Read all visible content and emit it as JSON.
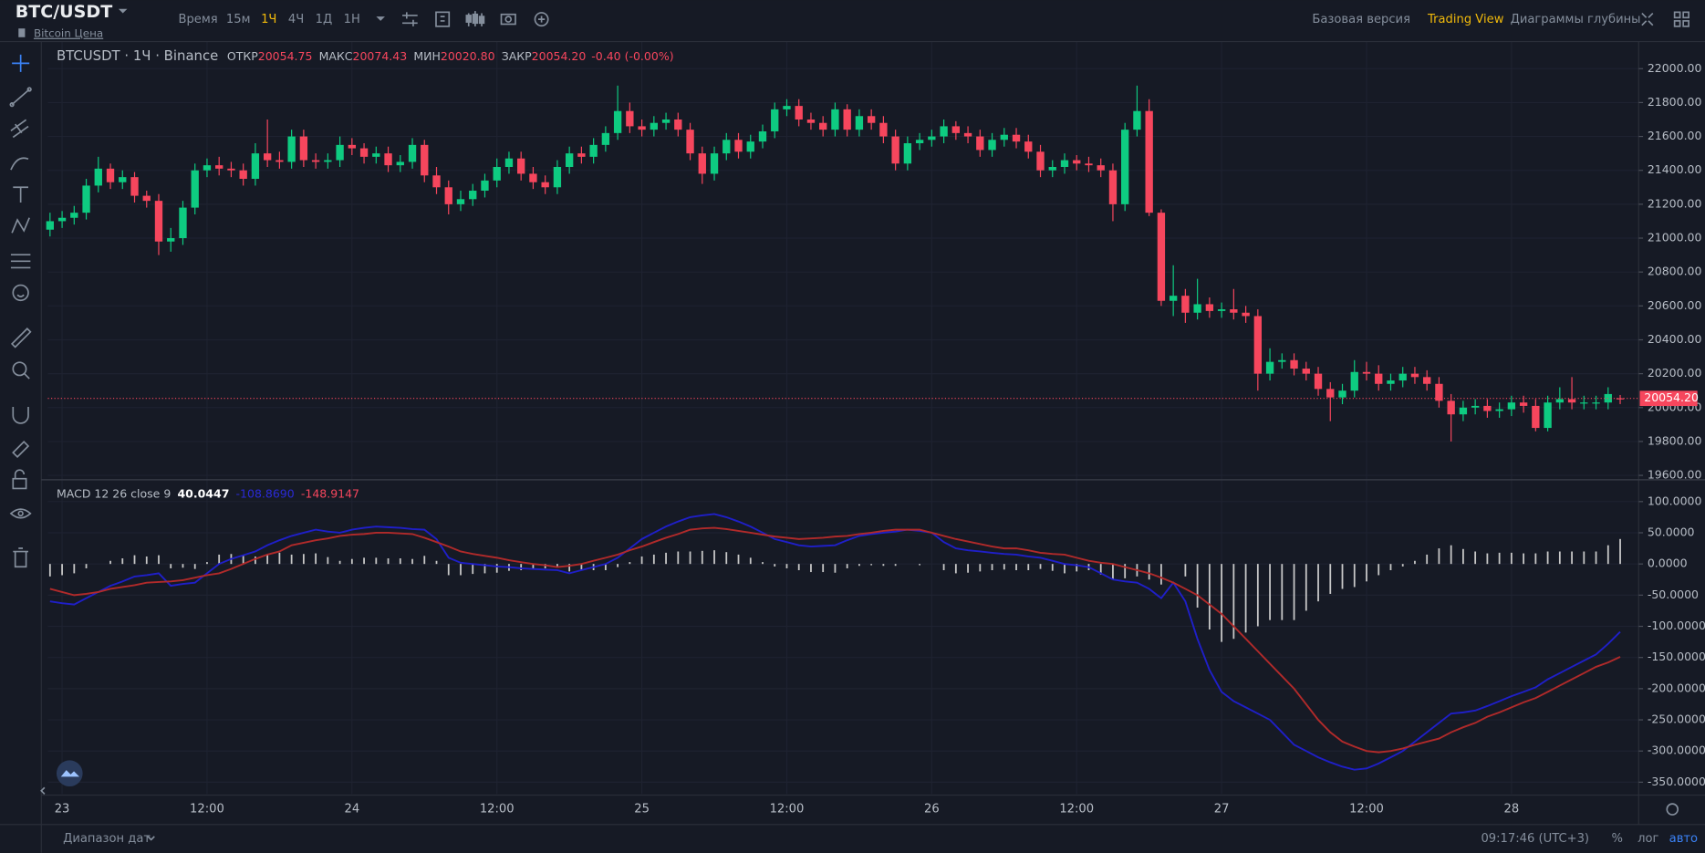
{
  "header": {
    "pair": "BTC/USDT",
    "pair_link": "Bitcoin Цена",
    "intervals": [
      "Время",
      "15м",
      "1Ч",
      "4Ч",
      "1Д",
      "1Н"
    ],
    "views": [
      "Базовая версия",
      "Trading View",
      "Диаграммы глубины"
    ]
  },
  "chart_data": [
    {
      "type": "candlestick",
      "legend": {
        "title": "BTCUSDT · 1Ч · Binance",
        "fields": [
          {
            "label": "ОТКР",
            "value": "20054.75"
          },
          {
            "label": "МАКС",
            "value": "20074.43"
          },
          {
            "label": "МИН",
            "value": "20020.80"
          },
          {
            "label": "ЗАКР",
            "value": "20054.20"
          }
        ],
        "change": "-0.40 (-0.00%)"
      },
      "up_color": "#0ecb81",
      "down_color": "#f6465d",
      "open": [
        21050,
        21100,
        21120,
        21150,
        21310,
        21410,
        21330,
        21360,
        21250,
        21220,
        20980,
        21000,
        21180,
        21400,
        21430,
        21410,
        21400,
        21350,
        21500,
        21460,
        21450,
        21600,
        21460,
        21450,
        21460,
        21550,
        21530,
        21480,
        21500,
        21430,
        21450,
        21550,
        21370,
        21300,
        21200,
        21230,
        21280,
        21340,
        21420,
        21470,
        21380,
        21330,
        21300,
        21420,
        21500,
        21480,
        21550,
        21620,
        21750,
        21660,
        21640,
        21680,
        21700,
        21640,
        21500,
        21380,
        21500,
        21580,
        21510,
        21570,
        21630,
        21760,
        21780,
        21700,
        21680,
        21640,
        21760,
        21640,
        21720,
        21680,
        21600,
        21440,
        21560,
        21580,
        21600,
        21660,
        21620,
        21600,
        21520,
        21580,
        21610,
        21570,
        21510,
        21400,
        21420,
        21460,
        21440,
        21430,
        21400,
        21200,
        21640,
        21750,
        21150,
        20630,
        20660,
        20560,
        20610,
        20570,
        20580,
        20560,
        20540,
        20200,
        20270,
        20280,
        20230,
        20200,
        20110,
        20060,
        20100,
        20210,
        20200,
        20140,
        20160,
        20200,
        20180,
        20140,
        20040,
        19960,
        20000,
        20010,
        19980,
        19990,
        20030,
        20010,
        19880,
        20030,
        20050,
        20030,
        20030,
        20030,
        20054.75
      ],
      "high": [
        21150,
        21160,
        21190,
        21350,
        21480,
        21440,
        21400,
        21390,
        21280,
        21260,
        21060,
        21220,
        21440,
        21470,
        21480,
        21450,
        21440,
        21560,
        21700,
        21510,
        21640,
        21640,
        21500,
        21500,
        21600,
        21590,
        21560,
        21540,
        21540,
        21490,
        21590,
        21580,
        21420,
        21340,
        21280,
        21320,
        21380,
        21470,
        21510,
        21510,
        21420,
        21370,
        21460,
        21540,
        21540,
        21590,
        21660,
        21900,
        21800,
        21700,
        21720,
        21740,
        21740,
        21680,
        21540,
        21540,
        21620,
        21620,
        21610,
        21670,
        21800,
        21820,
        21820,
        21740,
        21720,
        21800,
        21790,
        21760,
        21760,
        21720,
        21640,
        21600,
        21620,
        21640,
        21700,
        21690,
        21660,
        21640,
        21620,
        21650,
        21650,
        21610,
        21550,
        21460,
        21500,
        21490,
        21480,
        21470,
        21440,
        21680,
        21900,
        21820,
        21170,
        20840,
        20700,
        20760,
        20650,
        20620,
        20700,
        20600,
        20580,
        20350,
        20320,
        20320,
        20270,
        20240,
        20150,
        20140,
        20280,
        20270,
        20250,
        20200,
        20240,
        20240,
        20220,
        20180,
        20080,
        20040,
        20050,
        20050,
        20030,
        20070,
        20070,
        20050,
        20070,
        20120,
        20180,
        20070,
        20070,
        20120,
        20074.43
      ],
      "low": [
        21010,
        21060,
        21080,
        21110,
        21270,
        21290,
        21290,
        21210,
        21180,
        20900,
        20920,
        20960,
        21140,
        21360,
        21370,
        21360,
        21310,
        21310,
        21420,
        21410,
        21410,
        21420,
        21410,
        21410,
        21420,
        21490,
        21440,
        21440,
        21390,
        21390,
        21410,
        21330,
        21260,
        21140,
        21160,
        21190,
        21240,
        21300,
        21380,
        21340,
        21290,
        21260,
        21260,
        21380,
        21440,
        21440,
        21510,
        21580,
        21620,
        21600,
        21600,
        21640,
        21600,
        21460,
        21320,
        21340,
        21460,
        21470,
        21470,
        21530,
        21590,
        21720,
        21660,
        21640,
        21600,
        21600,
        21600,
        21600,
        21640,
        21560,
        21400,
        21400,
        21520,
        21540,
        21560,
        21580,
        21560,
        21480,
        21480,
        21540,
        21530,
        21470,
        21360,
        21360,
        21380,
        21400,
        21390,
        21360,
        21100,
        21160,
        21600,
        21130,
        20600,
        20540,
        20500,
        20520,
        20530,
        20530,
        20520,
        20500,
        20100,
        20160,
        20230,
        20190,
        20160,
        20070,
        19920,
        20020,
        20060,
        20160,
        20100,
        20100,
        20120,
        20140,
        20100,
        20000,
        19800,
        19920,
        19960,
        19940,
        19940,
        19950,
        19970,
        19860,
        19860,
        19990,
        19990,
        19990,
        19990,
        19990,
        20020.8
      ],
      "close": [
        21100,
        21120,
        21150,
        21310,
        21410,
        21330,
        21360,
        21250,
        21220,
        20980,
        21000,
        21180,
        21400,
        21430,
        21410,
        21400,
        21350,
        21500,
        21460,
        21450,
        21600,
        21460,
        21450,
        21460,
        21550,
        21530,
        21480,
        21500,
        21430,
        21450,
        21550,
        21370,
        21300,
        21200,
        21230,
        21280,
        21340,
        21420,
        21470,
        21380,
        21330,
        21300,
        21420,
        21500,
        21480,
        21550,
        21620,
        21750,
        21660,
        21640,
        21680,
        21700,
        21640,
        21500,
        21380,
        21500,
        21580,
        21510,
        21570,
        21630,
        21760,
        21780,
        21700,
        21680,
        21640,
        21760,
        21640,
        21720,
        21680,
        21600,
        21440,
        21560,
        21580,
        21600,
        21660,
        21620,
        21600,
        21520,
        21580,
        21610,
        21570,
        21510,
        21400,
        21420,
        21460,
        21440,
        21430,
        21400,
        21200,
        21640,
        21750,
        21150,
        20630,
        20660,
        20560,
        20610,
        20570,
        20580,
        20560,
        20540,
        20200,
        20270,
        20280,
        20230,
        20200,
        20110,
        20060,
        20100,
        20210,
        20200,
        20140,
        20160,
        20200,
        20180,
        20140,
        20040,
        19960,
        20000,
        20010,
        19980,
        19990,
        20030,
        20010,
        19880,
        20030,
        20050,
        20030,
        20030,
        20030,
        20080,
        20054.2
      ],
      "last_price_label": "20054.20",
      "ylim": [
        19574,
        22160
      ],
      "yticks": [
        {
          "value": 19600,
          "label": "19600.00"
        },
        {
          "value": 19800,
          "label": "19800.00"
        },
        {
          "value": 20000,
          "label": "20000.00"
        },
        {
          "value": 20200,
          "label": "20200.00"
        },
        {
          "value": 20400,
          "label": "20400.00"
        },
        {
          "value": 20600,
          "label": "20600.00"
        },
        {
          "value": 20800,
          "label": "20800.00"
        },
        {
          "value": 21000,
          "label": "21000.00"
        },
        {
          "value": 21200,
          "label": "21200.00"
        },
        {
          "value": 21400,
          "label": "21400.00"
        },
        {
          "value": 21600,
          "label": "21600.00"
        },
        {
          "value": 21800,
          "label": "21800.00"
        },
        {
          "value": 22000,
          "label": "22000.00"
        }
      ],
      "xlim": [
        -0.18,
        131.53
      ],
      "xticks": [
        {
          "value": 1,
          "label": "23"
        },
        {
          "value": 13,
          "label": "12:00"
        },
        {
          "value": 25,
          "label": "24"
        },
        {
          "value": 37,
          "label": "12:00"
        },
        {
          "value": 49,
          "label": "25"
        },
        {
          "value": 61,
          "label": "12:00"
        },
        {
          "value": 73,
          "label": "26"
        },
        {
          "value": 85,
          "label": "12:00"
        },
        {
          "value": 97,
          "label": "27"
        },
        {
          "value": 109,
          "label": "12:00"
        },
        {
          "value": 121,
          "label": "28"
        }
      ],
      "grid": true
    },
    {
      "type": "combo",
      "legend": {
        "title": "MACD 12 26 close 9",
        "values": [
          "40.0447",
          "-108.8690",
          "-148.9147"
        ]
      },
      "series": [
        {
          "type": "bar",
          "color": "#c8c8c8",
          "legend_color": "#ffffff",
          "values": [
            -20,
            -18,
            -15,
            -7,
            0,
            5,
            9,
            14,
            12,
            14,
            -7,
            -6,
            -8,
            3,
            15,
            16,
            14,
            12,
            15,
            18,
            15,
            16,
            17,
            11,
            5,
            8,
            10,
            10,
            9,
            9,
            8,
            13,
            5,
            -18,
            -18,
            -16,
            -15,
            -14,
            -11,
            -10,
            -8,
            -7,
            -5,
            -12,
            -10,
            -10,
            -10,
            -5,
            3,
            12,
            15,
            18,
            20,
            20,
            21,
            22,
            19,
            15,
            10,
            3,
            -4,
            -7,
            -10,
            -13,
            -13,
            -14,
            -7,
            -3,
            -2,
            -3,
            -3,
            0,
            -2,
            0,
            -10,
            -15,
            -14,
            -12,
            -10,
            -9,
            -10,
            -10,
            -8,
            -11,
            -15,
            -12,
            -10,
            -17,
            -25,
            -23,
            -20,
            -25,
            -33,
            0,
            -20,
            -70,
            -105,
            -125,
            -120,
            -110,
            -100,
            -90,
            -90,
            -90,
            -75,
            -60,
            -48,
            -40,
            -37,
            -28,
            -18,
            -10,
            -4,
            5,
            15,
            25,
            30,
            24,
            20,
            17,
            18,
            18,
            17,
            17,
            20,
            20,
            20,
            20,
            20,
            30,
            40.0447
          ]
        },
        {
          "type": "line",
          "color": "#1f1fc8",
          "legend_color": "#2a2ad6",
          "values": [
            -60,
            -63,
            -65,
            -55,
            -45,
            -35,
            -28,
            -20,
            -18,
            -15,
            -35,
            -32,
            -30,
            -15,
            0,
            8,
            14,
            20,
            30,
            38,
            45,
            50,
            55,
            52,
            50,
            55,
            58,
            60,
            59,
            58,
            56,
            55,
            40,
            10,
            2,
            0,
            -2,
            -4,
            -5,
            -7,
            -8,
            -9,
            -10,
            -15,
            -10,
            -5,
            0,
            10,
            25,
            40,
            50,
            60,
            68,
            75,
            78,
            80,
            75,
            68,
            60,
            50,
            40,
            35,
            30,
            28,
            29,
            30,
            38,
            45,
            48,
            50,
            52,
            55,
            53,
            50,
            35,
            25,
            22,
            20,
            18,
            16,
            15,
            12,
            10,
            5,
            0,
            -2,
            -5,
            -15,
            -25,
            -28,
            -30,
            -40,
            -55,
            -30,
            -60,
            -120,
            -170,
            -205,
            -220,
            -230,
            -240,
            -250,
            -270,
            -290,
            -300,
            -310,
            -318,
            -325,
            -330,
            -328,
            -320,
            -310,
            -300,
            -285,
            -270,
            -255,
            -240,
            -238,
            -235,
            -228,
            -220,
            -212,
            -205,
            -198,
            -185,
            -175,
            -165,
            -155,
            -145,
            -128,
            -108.869
          ]
        },
        {
          "type": "line",
          "color": "#b02a2a",
          "legend_color": "#f6465d",
          "values": [
            -40,
            -45,
            -50,
            -48,
            -45,
            -40,
            -37,
            -34,
            -30,
            -29,
            -28,
            -26,
            -22,
            -18,
            -15,
            -8,
            0,
            8,
            15,
            20,
            30,
            34,
            38,
            41,
            45,
            47,
            48,
            50,
            50,
            49,
            48,
            42,
            35,
            28,
            20,
            16,
            13,
            10,
            6,
            3,
            0,
            -2,
            -5,
            -3,
            0,
            5,
            10,
            15,
            22,
            28,
            35,
            42,
            48,
            55,
            57,
            58,
            56,
            53,
            50,
            47,
            44,
            42,
            40,
            41,
            42,
            44,
            45,
            48,
            50,
            53,
            55,
            55,
            55,
            50,
            45,
            40,
            36,
            32,
            28,
            25,
            25,
            22,
            18,
            16,
            15,
            10,
            5,
            2,
            0,
            -5,
            -10,
            -15,
            -22,
            -30,
            -40,
            -50,
            -65,
            -80,
            -100,
            -120,
            -140,
            -160,
            -180,
            -200,
            -225,
            -250,
            -270,
            -285,
            -293,
            -300,
            -302,
            -300,
            -296,
            -290,
            -285,
            -280,
            -270,
            -262,
            -255,
            -245,
            -238,
            -230,
            -222,
            -215,
            -205,
            -195,
            -185,
            -175,
            -165,
            -158,
            -148.9147
          ]
        }
      ],
      "ylim": [
        -369,
        135
      ],
      "yticks": [
        {
          "value": 100,
          "label": "100.0000"
        },
        {
          "value": 50,
          "label": "50.0000"
        },
        {
          "value": 0,
          "label": "0.0000"
        },
        {
          "value": -50,
          "label": "-50.0000"
        },
        {
          "value": -100,
          "label": "-100.0000"
        },
        {
          "value": -150,
          "label": "-150.0000"
        },
        {
          "value": -200,
          "label": "-200.0000"
        },
        {
          "value": -250,
          "label": "-250.0000"
        },
        {
          "value": -300,
          "label": "-300.0000"
        },
        {
          "value": -350,
          "label": "-350.0000"
        }
      ],
      "grid": true
    }
  ],
  "footer": {
    "date_range": "Диапазон дат",
    "time": "09:17:46 (UTC+3)",
    "scale_options": [
      "%",
      "лог",
      "авто"
    ]
  }
}
